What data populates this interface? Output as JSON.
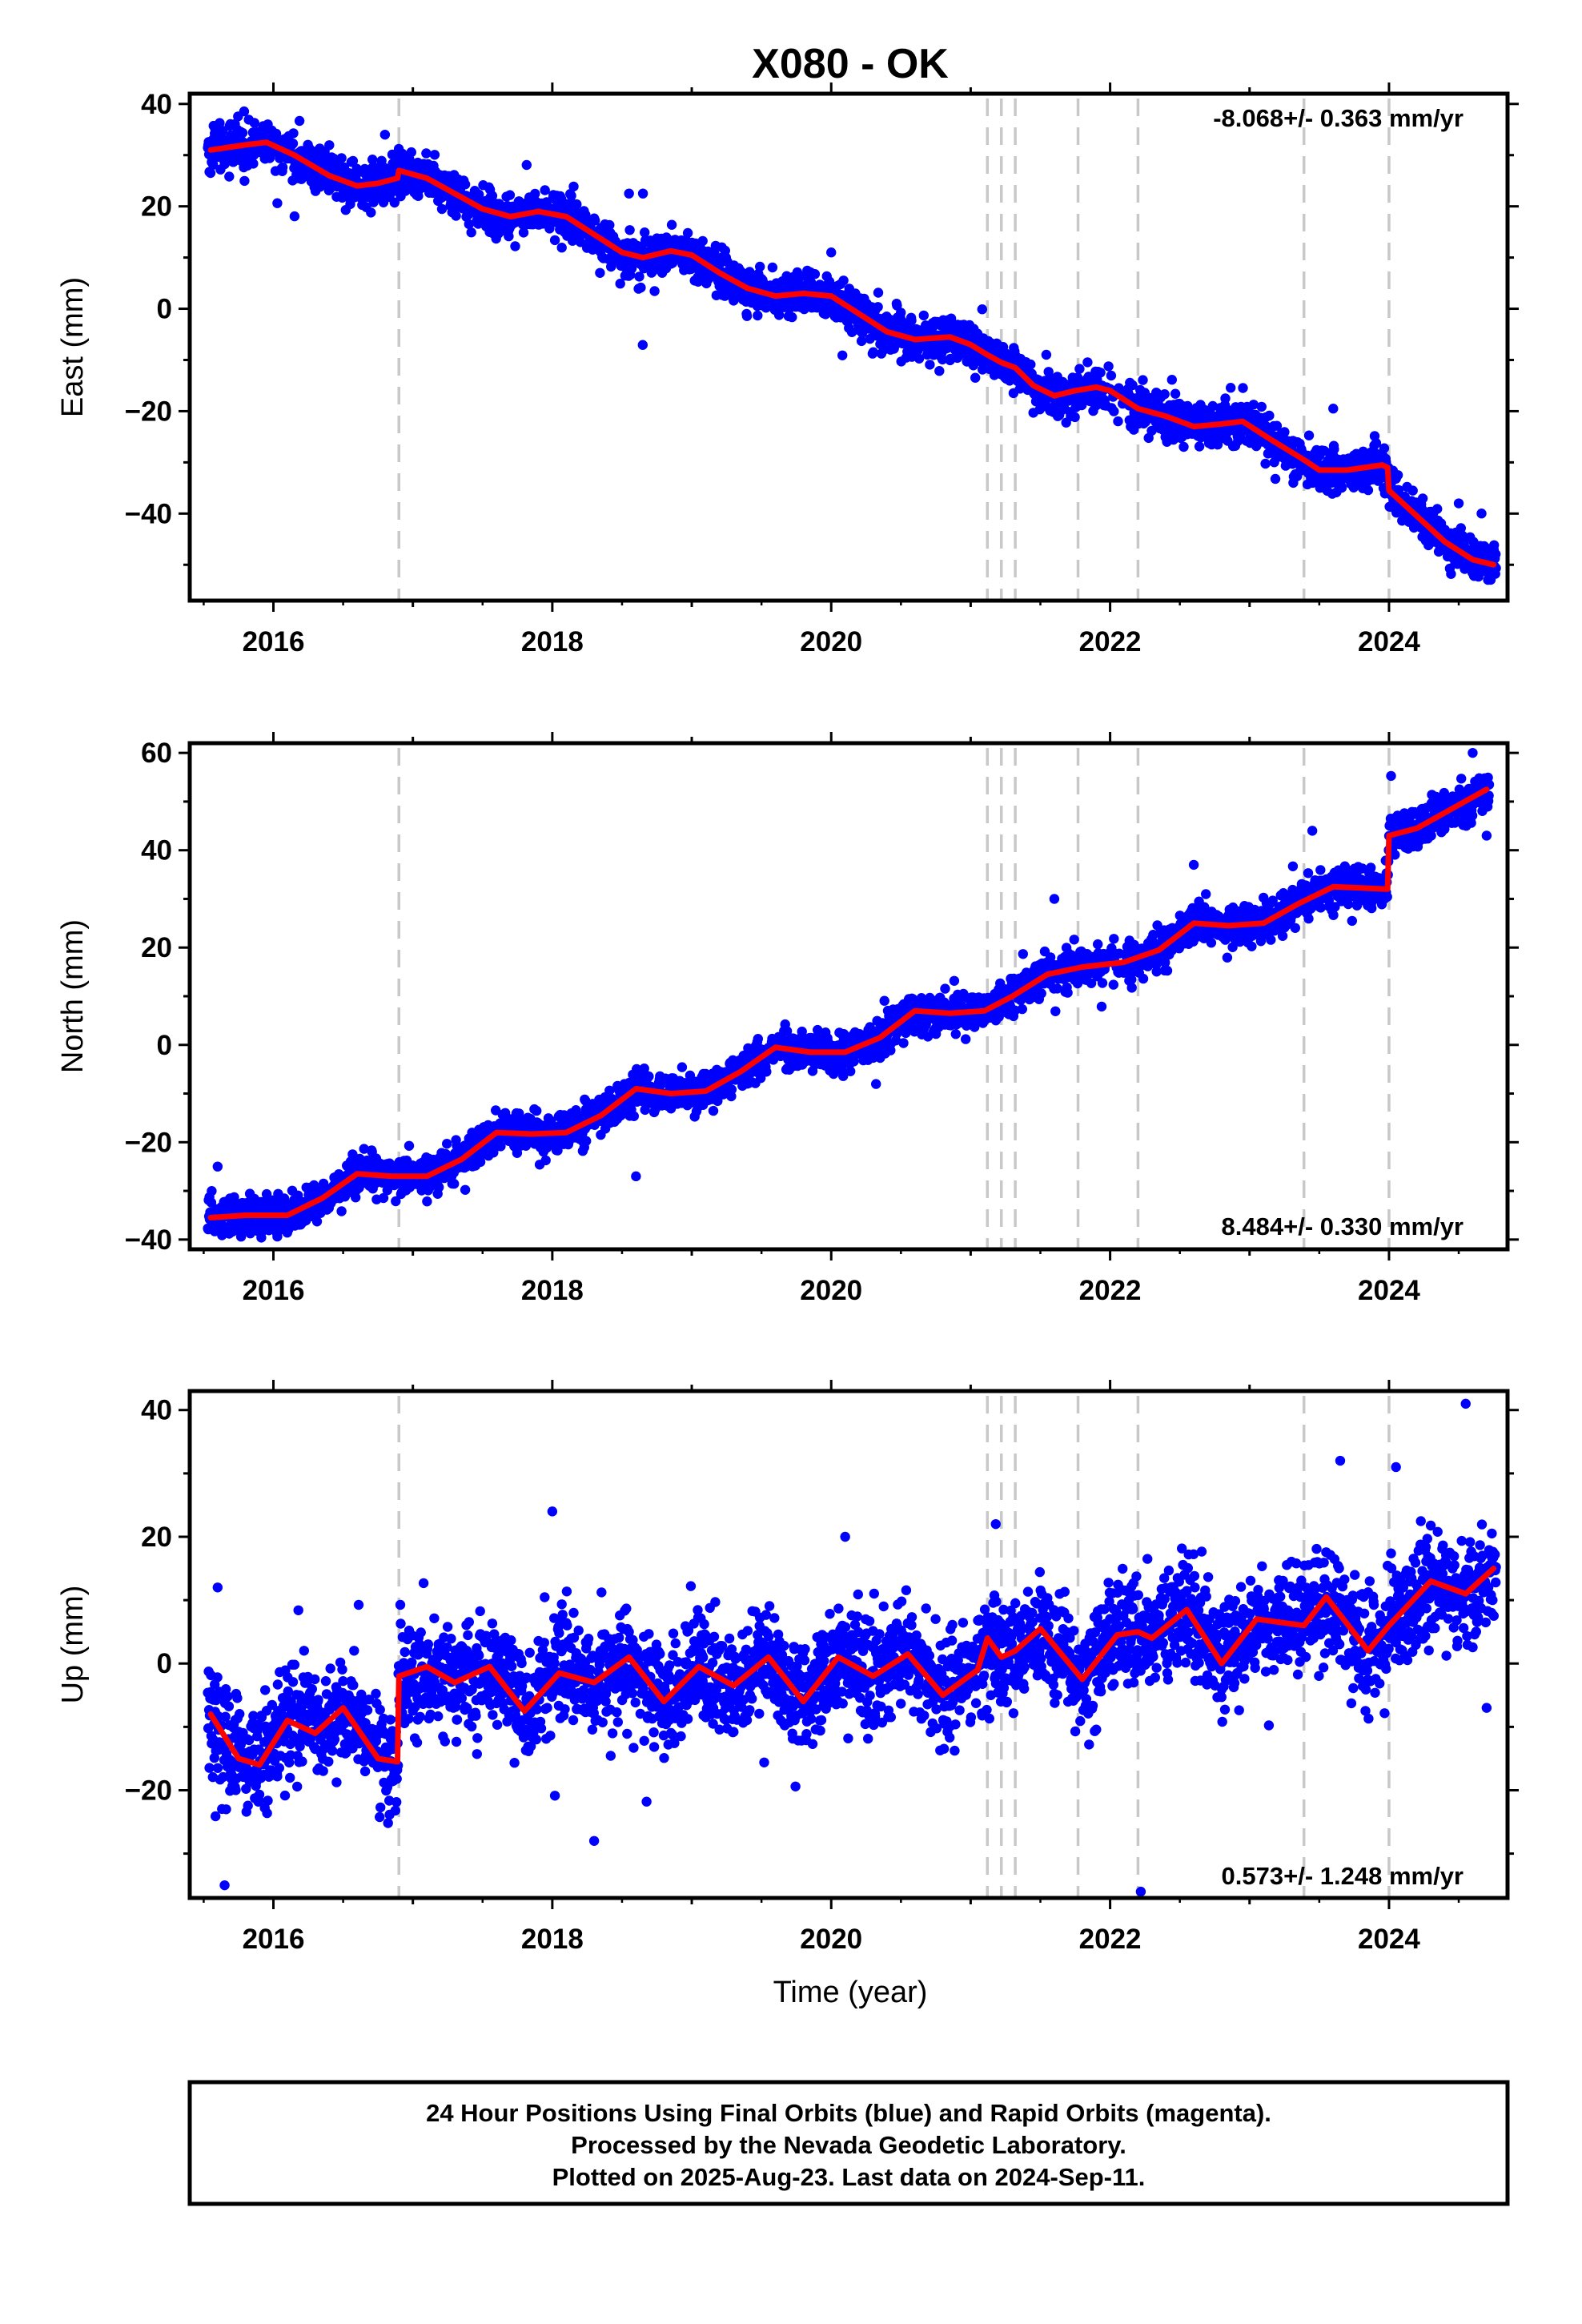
{
  "title": "X080 - OK",
  "caption": {
    "lines": [
      "24 Hour Positions Using Final Orbits (blue) and Rapid Orbits (magenta).",
      "Processed by the Nevada Geodetic Laboratory.",
      "Plotted on 2025-Aug-23. Last data on 2024-Sep-11."
    ]
  },
  "xlabel": "Time (year)",
  "colors": {
    "points": "#0000ff",
    "model": "#ff0000",
    "breaks": "#c8c8c8"
  },
  "chart_data": [
    {
      "type": "scatter",
      "name": "east",
      "ylabel": "East (mm)",
      "rate_label": "-8.068+/- 0.363 mm/yr",
      "xlim": [
        2015.4,
        2024.85
      ],
      "ylim": [
        -57,
        42
      ],
      "yticks": [
        -40,
        -20,
        0,
        20,
        40
      ],
      "xticks": [
        2016,
        2018,
        2020,
        2022,
        2024
      ],
      "tick_labels": {
        "y": [
          "−40",
          "−20",
          "0",
          "20",
          "40"
        ],
        "x": [
          "2016",
          "2018",
          "2020",
          "2022",
          "2024"
        ]
      },
      "breaks": [
        2016.9,
        2021.12,
        2021.22,
        2021.32,
        2021.77,
        2022.2,
        2023.39,
        2024.0
      ],
      "model": {
        "x": [
          2015.55,
          2015.8,
          2015.95,
          2016.15,
          2016.4,
          2016.6,
          2016.75,
          2016.89,
          2016.9,
          2017.1,
          2017.3,
          2017.5,
          2017.7,
          2017.9,
          2018.1,
          2018.3,
          2018.5,
          2018.65,
          2018.85,
          2019.0,
          2019.2,
          2019.4,
          2019.6,
          2019.8,
          2020.0,
          2020.2,
          2020.4,
          2020.6,
          2020.85,
          2021.0,
          2021.12,
          2021.22,
          2021.32,
          2021.45,
          2021.6,
          2021.75,
          2021.9,
          2022.0,
          2022.2,
          2022.4,
          2022.6,
          2022.8,
          2022.95,
          2023.15,
          2023.39,
          2023.5,
          2023.7,
          2023.95,
          2023.99,
          2024.0,
          2024.2,
          2024.4,
          2024.6,
          2024.75
        ],
        "y": [
          31,
          32,
          32.5,
          30,
          26,
          24,
          24.5,
          25.5,
          27,
          25.5,
          22.5,
          19.5,
          18,
          19,
          18,
          14.5,
          11,
          10,
          11.3,
          10.5,
          7,
          4,
          2.5,
          3,
          2.5,
          -1,
          -4.5,
          -6,
          -5.5,
          -7,
          -9,
          -10.5,
          -11.5,
          -15,
          -17,
          -16,
          -15.3,
          -16,
          -19.5,
          -21,
          -23,
          -22.5,
          -22,
          -25.5,
          -29.5,
          -31.5,
          -31.5,
          -30.5,
          -31,
          -35.5,
          -40.5,
          -45.5,
          -49,
          -50
        ]
      },
      "scatter_sd": 2.0,
      "outliers": {
        "x": [
          2016.8,
          2018.55,
          2018.65,
          2020.0,
          2023.6,
          2024.5
        ],
        "y": [
          34,
          22.5,
          22.5,
          11,
          -19.5,
          -38
        ]
      }
    },
    {
      "type": "scatter",
      "name": "north",
      "ylabel": "North (mm)",
      "rate_label": "8.484+/- 0.330 mm/yr",
      "xlim": [
        2015.4,
        2024.85
      ],
      "ylim": [
        -42,
        62
      ],
      "yticks": [
        -40,
        -20,
        0,
        20,
        40,
        60
      ],
      "xticks": [
        2016,
        2018,
        2020,
        2022,
        2024
      ],
      "tick_labels": {
        "y": [
          "−40",
          "−20",
          "0",
          "20",
          "40",
          "60"
        ],
        "x": [
          "2016",
          "2018",
          "2020",
          "2022",
          "2024"
        ]
      },
      "breaks": [
        2016.9,
        2021.12,
        2021.22,
        2021.32,
        2021.77,
        2022.2,
        2023.39,
        2024.0
      ],
      "model": {
        "x": [
          2015.55,
          2015.8,
          2016.1,
          2016.35,
          2016.6,
          2016.85,
          2017.1,
          2017.35,
          2017.6,
          2017.85,
          2018.1,
          2018.35,
          2018.6,
          2018.85,
          2019.1,
          2019.35,
          2019.6,
          2019.85,
          2020.1,
          2020.35,
          2020.6,
          2020.85,
          2021.1,
          2021.3,
          2021.55,
          2021.8,
          2022.1,
          2022.35,
          2022.6,
          2022.85,
          2023.1,
          2023.35,
          2023.6,
          2023.99,
          2024.0,
          2024.2,
          2024.45,
          2024.7
        ],
        "y": [
          -35.5,
          -35,
          -35,
          -31.5,
          -26.5,
          -27,
          -27,
          -23.5,
          -18,
          -18.3,
          -18,
          -14.5,
          -9,
          -10,
          -9.5,
          -5.5,
          -0.5,
          -1.5,
          -1.5,
          1.5,
          7,
          6.5,
          7,
          10,
          14.5,
          16,
          17,
          19.5,
          25,
          24.5,
          25,
          29,
          32.5,
          32,
          43,
          44.5,
          48.5,
          52.5
        ]
      },
      "scatter_sd": 1.9,
      "outliers": {
        "x": [
          2015.6,
          2018.6,
          2021.6,
          2022.6,
          2023.45,
          2024.6,
          2024.7
        ],
        "y": [
          -25,
          -27,
          30,
          37,
          44,
          60,
          43
        ]
      }
    },
    {
      "type": "scatter",
      "name": "up",
      "ylabel": "Up (mm)",
      "rate_label": "0.573+/- 1.248 mm/yr",
      "xlim": [
        2015.4,
        2024.85
      ],
      "ylim": [
        -37,
        43
      ],
      "yticks": [
        -20,
        0,
        20,
        40
      ],
      "xticks": [
        2016,
        2018,
        2020,
        2022,
        2024
      ],
      "tick_labels": {
        "y": [
          "−20",
          "0",
          "20",
          "40"
        ],
        "x": [
          "2016",
          "2018",
          "2020",
          "2022",
          "2024"
        ]
      },
      "breaks": [
        2016.9,
        2021.12,
        2021.22,
        2021.32,
        2021.77,
        2022.2,
        2023.39,
        2024.0
      ],
      "model": {
        "x": [
          2015.55,
          2015.75,
          2015.9,
          2016.1,
          2016.3,
          2016.5,
          2016.75,
          2016.89,
          2016.9,
          2017.1,
          2017.3,
          2017.55,
          2017.8,
          2018.05,
          2018.3,
          2018.55,
          2018.8,
          2019.05,
          2019.3,
          2019.55,
          2019.8,
          2020.05,
          2020.3,
          2020.55,
          2020.8,
          2021.05,
          2021.12,
          2021.22,
          2021.32,
          2021.5,
          2021.8,
          2022.05,
          2022.2,
          2022.3,
          2022.55,
          2022.8,
          2023.05,
          2023.39,
          2023.55,
          2023.85,
          2024.0,
          2024.3,
          2024.55,
          2024.75
        ],
        "y": [
          -8,
          -15,
          -16,
          -9,
          -11,
          -7,
          -15,
          -15.5,
          -2,
          -0.5,
          -3,
          -0.5,
          -7.5,
          -1.5,
          -3,
          1,
          -6,
          -0.5,
          -3.5,
          1,
          -6,
          1,
          -2,
          1.5,
          -5,
          -1,
          4,
          1,
          2,
          5.5,
          -2.5,
          4.5,
          5,
          4,
          8.5,
          0,
          7,
          6,
          10.5,
          2,
          6,
          13,
          11,
          15
        ]
      },
      "scatter_sd": 4.2,
      "outliers": {
        "x": [
          2015.6,
          2015.65,
          2018.0,
          2018.3,
          2020.1,
          2021.18,
          2022.22,
          2023.65,
          2024.05,
          2024.55,
          2024.7
        ],
        "y": [
          12,
          -35,
          24,
          -28,
          20,
          22,
          -36,
          32,
          31,
          41,
          -7
        ]
      }
    }
  ]
}
